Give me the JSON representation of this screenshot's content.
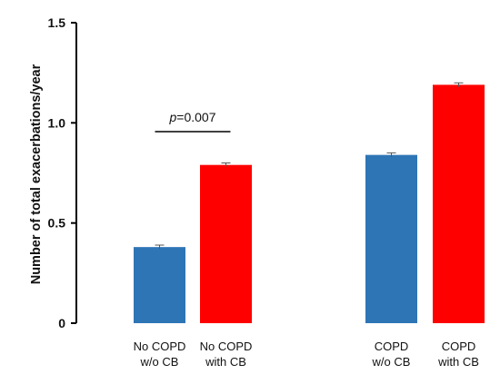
{
  "chart_data": {
    "type": "bar",
    "ylabel": "Number of total exacerbations/year",
    "ylim": [
      0,
      1.5
    ],
    "yticks": [
      0,
      0.5,
      1.0,
      1.5
    ],
    "ytick_labels": [
      "0",
      "0.5",
      "1.0",
      "1.5"
    ],
    "grid": false,
    "categories": [
      {
        "line1": "No COPD",
        "line2": "w/o CB"
      },
      {
        "line1": "No COPD",
        "line2": "with CB"
      },
      {
        "line1": "COPD",
        "line2": "w/o CB"
      },
      {
        "line1": "COPD",
        "line2": "with CB"
      }
    ],
    "values": [
      0.38,
      0.79,
      0.84,
      1.19
    ],
    "errors": [
      0.01,
      0.01,
      0.01,
      0.01
    ],
    "colors": [
      "#2e75b6",
      "#ff0000",
      "#2e75b6",
      "#ff0000"
    ],
    "annotation": {
      "italic": "p",
      "rest": "=0.007",
      "between": [
        0,
        1
      ]
    }
  }
}
